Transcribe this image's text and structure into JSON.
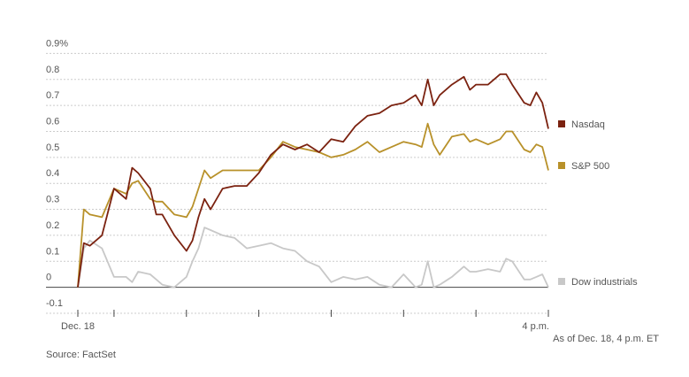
{
  "chart_data": {
    "type": "line",
    "x": [
      570,
      575,
      580,
      590,
      600,
      610,
      615,
      620,
      630,
      635,
      640,
      650,
      660,
      665,
      670,
      675,
      680,
      690,
      700,
      710,
      720,
      730,
      740,
      750,
      760,
      770,
      780,
      790,
      800,
      810,
      820,
      830,
      840,
      850,
      855,
      860,
      865,
      870,
      880,
      890,
      895,
      900,
      910,
      920,
      925,
      930,
      940,
      945,
      950,
      955,
      960
    ],
    "xlim": [
      570,
      960
    ],
    "xticks": [
      {
        "value": 570,
        "label": "Dec. 18"
      },
      {
        "value": 600,
        "label": null
      },
      {
        "value": 660,
        "label": null
      },
      {
        "value": 720,
        "label": null
      },
      {
        "value": 780,
        "label": null
      },
      {
        "value": 840,
        "label": null
      },
      {
        "value": 900,
        "label": null
      },
      {
        "value": 960,
        "label": "4 p.m."
      }
    ],
    "ylim": [
      -0.1,
      0.9
    ],
    "yticks": [
      -0.1,
      0,
      0.1,
      0.2,
      0.3,
      0.4,
      0.5,
      0.6,
      0.7,
      0.8,
      {
        "value": 0.9,
        "label": "0.9%"
      }
    ],
    "grid": true,
    "series": [
      {
        "name": "Nasdaq",
        "color": "#7b2210",
        "values": [
          0,
          0.17,
          0.16,
          0.2,
          0.38,
          0.34,
          0.46,
          0.44,
          0.38,
          0.28,
          0.28,
          0.2,
          0.14,
          0.18,
          0.27,
          0.34,
          0.3,
          0.38,
          0.39,
          0.39,
          0.44,
          0.51,
          0.55,
          0.53,
          0.55,
          0.52,
          0.57,
          0.56,
          0.62,
          0.66,
          0.67,
          0.7,
          0.71,
          0.74,
          0.7,
          0.8,
          0.7,
          0.74,
          0.78,
          0.81,
          0.76,
          0.78,
          0.78,
          0.82,
          0.82,
          0.78,
          0.71,
          0.7,
          0.75,
          0.71,
          0.61
        ]
      },
      {
        "name": "S&P 500",
        "color": "#b8912a",
        "values": [
          0,
          0.3,
          0.28,
          0.27,
          0.38,
          0.36,
          0.4,
          0.41,
          0.34,
          0.33,
          0.33,
          0.28,
          0.27,
          0.31,
          0.38,
          0.45,
          0.42,
          0.45,
          0.45,
          0.45,
          0.45,
          0.5,
          0.56,
          0.54,
          0.53,
          0.52,
          0.5,
          0.51,
          0.53,
          0.56,
          0.52,
          0.54,
          0.56,
          0.55,
          0.54,
          0.63,
          0.55,
          0.51,
          0.58,
          0.59,
          0.56,
          0.57,
          0.55,
          0.57,
          0.6,
          0.6,
          0.53,
          0.52,
          0.55,
          0.54,
          0.45
        ]
      },
      {
        "name": "Dow industrials",
        "color": "#c8c8c8",
        "values": [
          0,
          0.15,
          0.18,
          0.15,
          0.04,
          0.04,
          0.02,
          0.06,
          0.05,
          0.03,
          0.01,
          0,
          0.04,
          0.1,
          0.15,
          0.23,
          0.22,
          0.2,
          0.19,
          0.15,
          0.16,
          0.17,
          0.15,
          0.14,
          0.1,
          0.08,
          0.02,
          0.04,
          0.03,
          0.04,
          0.01,
          0,
          0.05,
          0,
          0.01,
          0.1,
          0,
          0.01,
          0.04,
          0.08,
          0.06,
          0.06,
          0.07,
          0.06,
          0.11,
          0.1,
          0.03,
          0.03,
          0.04,
          0.05,
          0
        ]
      }
    ],
    "note": "As of Dec. 18, 4 p.m. ET",
    "source": "Source: FactSet"
  }
}
